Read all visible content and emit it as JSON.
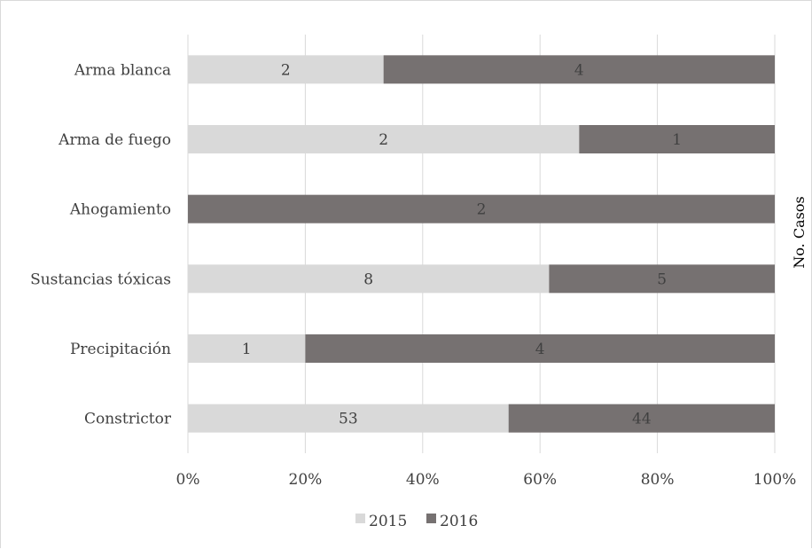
{
  "chart_data": {
    "type": "bar",
    "orientation": "horizontal",
    "stacked": "percent",
    "categories": [
      "Arma blanca",
      "Arma de fuego",
      "Ahogamiento",
      "Sustancias tóxicas",
      "Precipitación",
      "Constrictor"
    ],
    "series": [
      {
        "name": "2015",
        "values": [
          2,
          2,
          0,
          8,
          1,
          53
        ],
        "color": "#d9d9d9"
      },
      {
        "name": "2016",
        "values": [
          4,
          1,
          2,
          5,
          4,
          44
        ],
        "color": "#767171"
      }
    ],
    "xlim": [
      0,
      1
    ],
    "xticks": [
      "0%",
      "20%",
      "40%",
      "60%",
      "80%",
      "100%"
    ],
    "ylabel_right": "No. Casos",
    "legend_position": "bottom",
    "grid": true
  }
}
